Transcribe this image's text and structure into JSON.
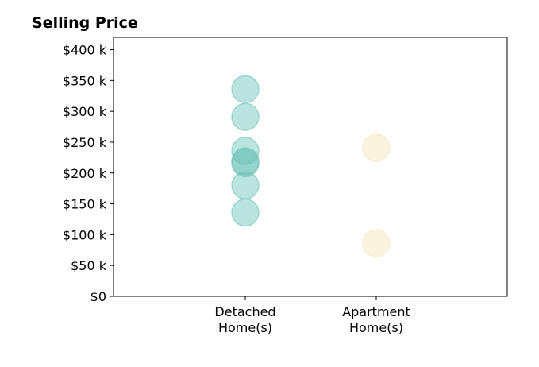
{
  "chart_data": {
    "type": "scatter",
    "title": "Selling Price",
    "xlabel": "",
    "ylabel": "",
    "categories": [
      [
        "Detached",
        "Home(s)"
      ],
      [
        "Apartment",
        "Home(s)"
      ]
    ],
    "ylim": [
      0,
      420000
    ],
    "yticks": [
      0,
      50000,
      100000,
      150000,
      200000,
      250000,
      300000,
      350000,
      400000
    ],
    "ytick_labels": [
      "$0",
      "$50 k",
      "$100 k",
      "$150 k",
      "$200 k",
      "$250 k",
      "$300 k",
      "$350 k",
      "$400 k"
    ],
    "grid": false,
    "series": [
      {
        "category_index": 0,
        "color": "#69c2b7",
        "values": [
          336000,
          291000,
          236000,
          219000,
          216000,
          180000,
          136000
        ]
      },
      {
        "category_index": 1,
        "color": "#f5e4b8",
        "values": [
          241000,
          86000
        ]
      }
    ]
  }
}
